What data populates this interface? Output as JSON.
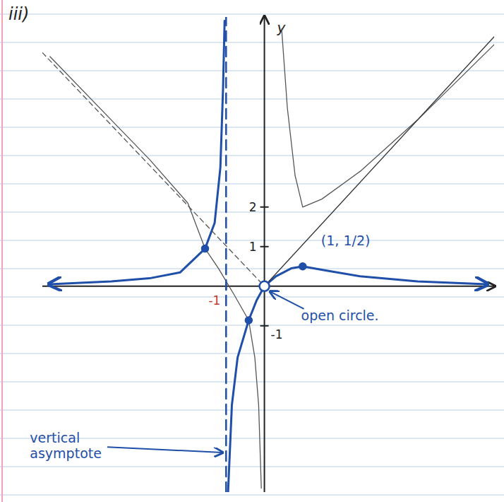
{
  "chart_data": {
    "type": "line",
    "title": "iii)",
    "y_label": "y",
    "xlim": [
      -5.8,
      6
    ],
    "ylim": [
      -5.2,
      6.8
    ],
    "xticks": [
      -1
    ],
    "yticks": [
      -1,
      1,
      2
    ],
    "grid": false,
    "series": [
      {
        "color": "#1f4fa8",
        "line_style": "solid",
        "x": [
          -5.6,
          -4,
          -3,
          -2.2,
          -1.55,
          -1.3,
          -1.15,
          -1.08,
          -1.04,
          -1,
          -0.95,
          -0.85,
          -0.7,
          -0.41,
          -0.2,
          0,
          0.3,
          0.7,
          1,
          1.6,
          2.5,
          4,
          5.8
        ],
        "values": [
          0.05,
          0.12,
          0.2,
          0.35,
          0.95,
          1.6,
          3,
          5,
          6.7,
          null,
          -5.2,
          -3,
          -1.8,
          -0.86,
          -0.35,
          0,
          0.25,
          0.45,
          0.5,
          0.4,
          0.25,
          0.12,
          0.05
        ]
      },
      {
        "color": "#555555",
        "line_style": "solid",
        "x": [
          0.45,
          0.6,
          0.8,
          1,
          1.5,
          2.5,
          4,
          6,
          6,
          -5.6,
          -4,
          -3,
          -2,
          -1.55,
          -1.2,
          -0.8,
          -0.41,
          -0.25,
          -0.15,
          -0.08
        ],
        "values": [
          6.5,
          4.5,
          2.8,
          2,
          2.2,
          2.9,
          4.2,
          6.1,
          null,
          5.8,
          4.2,
          3.2,
          2.1,
          0.95,
          0.45,
          -0.2,
          -0.86,
          -1.8,
          -3,
          -5.1
        ]
      },
      {
        "color": "#555555",
        "line_style": "dashed",
        "x": [
          -5.8,
          0
        ],
        "values": [
          5.9,
          0
        ]
      },
      {
        "color": "#333333",
        "line_style": "solid",
        "x": [
          0,
          6
        ],
        "values": [
          0,
          6.3
        ]
      },
      {
        "color": "#1f4fa8",
        "line_style": "dashed",
        "x": [
          -1,
          -1
        ],
        "values": [
          -5.2,
          6.8
        ]
      },
      {
        "type": "scatter",
        "marker": "circle",
        "color": "#1f4fa8",
        "x": [
          -1.55,
          -0.41,
          1
        ],
        "values": [
          0.95,
          -0.86,
          0.5
        ]
      }
    ],
    "annotations": [
      {
        "text": "(1, 1/2)",
        "x": 1,
        "y": 0.5
      },
      {
        "text": "open circle.",
        "x": 0,
        "y": 0
      },
      {
        "text": "vertical asymptote",
        "x": -1,
        "y": -4.2
      }
    ]
  }
}
